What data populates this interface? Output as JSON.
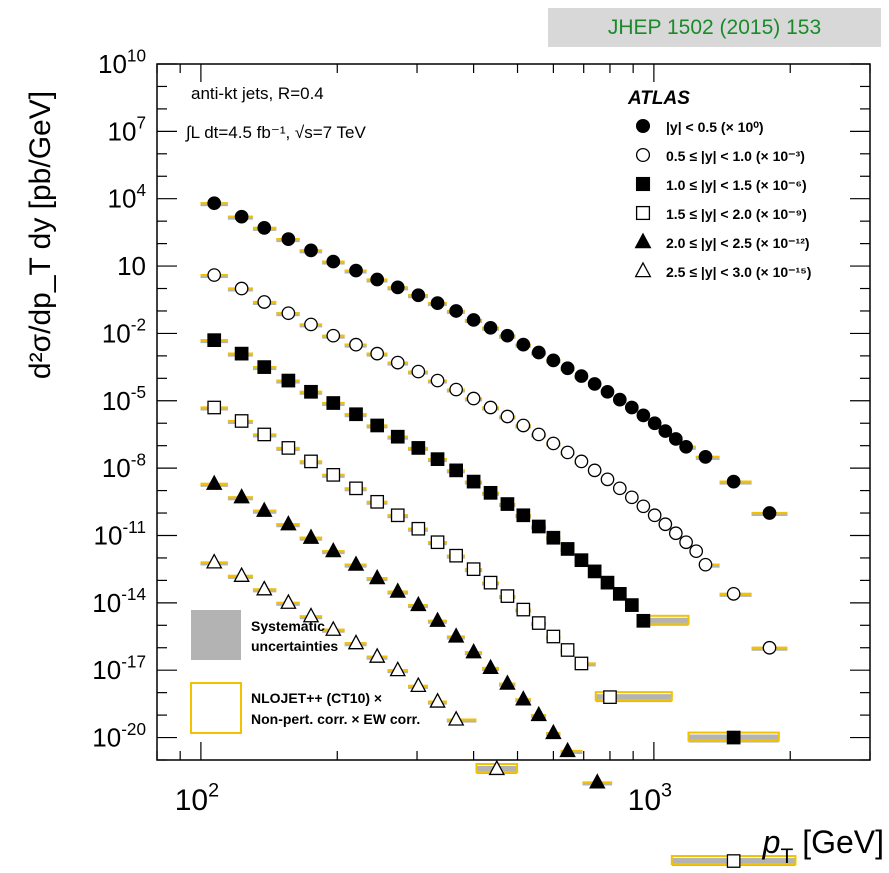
{
  "journal_ref": "JHEP 1502 (2015) 153",
  "colors": {
    "journal_text": "#1a8a2a",
    "journal_bg": "#d8d8d8",
    "nlo": "#f2c200",
    "syst": "#b3b3b3"
  },
  "chart_data": {
    "type": "scatter",
    "title": "",
    "xlabel": {
      "main": "p",
      "sub": "T",
      "unit": " [GeV]"
    },
    "ylabel": {
      "text": "d²σ/dp_T dy [pb/GeV]"
    },
    "x_scale": "log",
    "y_scale": "log",
    "xlim": [
      80,
      3000
    ],
    "ylim_exp": [
      -21,
      10
    ],
    "x_ticks": [
      {
        "base": "10",
        "exp": "2",
        "value": 100
      },
      {
        "base": "10",
        "exp": "3",
        "value": 1000
      }
    ],
    "y_ticks": [
      {
        "base": "10",
        "exp": "10",
        "value_exp": 10
      },
      {
        "base": "10",
        "exp": "7",
        "value_exp": 7
      },
      {
        "base": "10",
        "exp": "4",
        "value_exp": 4
      },
      {
        "base": "10",
        "exp": "",
        "value_exp": 1
      },
      {
        "base": "10",
        "exp": "-2",
        "value_exp": -2
      },
      {
        "base": "10",
        "exp": "-5",
        "value_exp": -5
      },
      {
        "base": "10",
        "exp": "-8",
        "value_exp": -8
      },
      {
        "base": "10",
        "exp": "-11",
        "value_exp": -11
      },
      {
        "base": "10",
        "exp": "-14",
        "value_exp": -14
      },
      {
        "base": "10",
        "exp": "-17",
        "value_exp": -17
      },
      {
        "base": "10",
        "exp": "-20",
        "value_exp": -20
      }
    ],
    "annotations": {
      "jets": "anti-kt jets, R=0.4",
      "lumi": "∫L dt=4.5 fb⁻¹, √s=7 TeV",
      "experiment": "ATLAS"
    },
    "legend": {
      "placement": "top-right",
      "entries": [
        {
          "label": "|y| < 0.5 (× 10⁰)",
          "marker": "circle",
          "filled": true
        },
        {
          "label": "0.5 ≤ |y| < 1.0 (× 10⁻³)",
          "marker": "circle",
          "filled": false
        },
        {
          "label": "1.0 ≤ |y| < 1.5 (× 10⁻⁶)",
          "marker": "square",
          "filled": true
        },
        {
          "label": "1.5 ≤ |y| < 2.0 (× 10⁻⁹)",
          "marker": "square",
          "filled": false
        },
        {
          "label": "2.0 ≤ |y| < 2.5 (× 10⁻¹²)",
          "marker": "triangle",
          "filled": true
        },
        {
          "label": "2.5 ≤ |y| < 3.0 (× 10⁻¹⁵)",
          "marker": "triangle",
          "filled": false
        }
      ]
    },
    "legend_bottom": {
      "placement": "bottom-left",
      "syst": "Systematic uncertainties",
      "nlo": "NLOJET++ (CT10) × Non-pert. corr. × EW corr."
    },
    "series": [
      {
        "name": "|y| < 0.5 (× 10⁰)",
        "marker": "circle",
        "filled": true,
        "points": [
          [
            107,
            3.8
          ],
          [
            123,
            3.2
          ],
          [
            138,
            2.7
          ],
          [
            156,
            2.2
          ],
          [
            175,
            1.7
          ],
          [
            196,
            1.2
          ],
          [
            220,
            0.8
          ],
          [
            245,
            0.4
          ],
          [
            272,
            0.05
          ],
          [
            302,
            -0.3
          ],
          [
            333,
            -0.65
          ],
          [
            366,
            -1.0
          ],
          [
            400,
            -1.4
          ],
          [
            436,
            -1.75
          ],
          [
            475,
            -2.1
          ],
          [
            515,
            -2.5
          ],
          [
            557,
            -2.85
          ],
          [
            600,
            -3.2
          ],
          [
            645,
            -3.55
          ],
          [
            692,
            -3.9
          ],
          [
            740,
            -4.25
          ],
          [
            790,
            -4.6
          ],
          [
            841,
            -4.95
          ],
          [
            894,
            -5.3
          ],
          [
            948,
            -5.65
          ],
          [
            1004,
            -6.0
          ],
          [
            1060,
            -6.35
          ],
          [
            1118,
            -6.7
          ],
          [
            1178,
            -7.05
          ],
          [
            1300,
            -7.5
          ],
          [
            1500,
            -8.6
          ],
          [
            1800,
            -10.0
          ]
        ]
      },
      {
        "name": "0.5 ≤ |y| < 1.0 (× 10⁻³)",
        "marker": "circle",
        "filled": false,
        "points": [
          [
            107,
            0.6
          ],
          [
            123,
            0.0
          ],
          [
            138,
            -0.6
          ],
          [
            156,
            -1.1
          ],
          [
            175,
            -1.6
          ],
          [
            196,
            -2.1
          ],
          [
            220,
            -2.5
          ],
          [
            245,
            -2.9
          ],
          [
            272,
            -3.3
          ],
          [
            302,
            -3.7
          ],
          [
            333,
            -4.1
          ],
          [
            366,
            -4.5
          ],
          [
            400,
            -4.9
          ],
          [
            436,
            -5.3
          ],
          [
            475,
            -5.7
          ],
          [
            515,
            -6.1
          ],
          [
            557,
            -6.5
          ],
          [
            600,
            -6.9
          ],
          [
            645,
            -7.3
          ],
          [
            692,
            -7.7
          ],
          [
            740,
            -8.1
          ],
          [
            790,
            -8.5
          ],
          [
            841,
            -8.9
          ],
          [
            894,
            -9.3
          ],
          [
            948,
            -9.7
          ],
          [
            1004,
            -10.1
          ],
          [
            1060,
            -10.5
          ],
          [
            1118,
            -10.9
          ],
          [
            1178,
            -11.3
          ],
          [
            1240,
            -11.7
          ],
          [
            1300,
            -12.3
          ],
          [
            1500,
            -13.6
          ],
          [
            1800,
            -16.0
          ]
        ]
      },
      {
        "name": "1.0 ≤ |y| < 1.5 (× 10⁻⁶)",
        "marker": "square",
        "filled": true,
        "points": [
          [
            107,
            -2.3
          ],
          [
            123,
            -2.9
          ],
          [
            138,
            -3.5
          ],
          [
            156,
            -4.1
          ],
          [
            175,
            -4.6
          ],
          [
            196,
            -5.1
          ],
          [
            220,
            -5.6
          ],
          [
            245,
            -6.1
          ],
          [
            272,
            -6.6
          ],
          [
            302,
            -7.1
          ],
          [
            333,
            -7.6
          ],
          [
            366,
            -8.1
          ],
          [
            400,
            -8.6
          ],
          [
            436,
            -9.1
          ],
          [
            475,
            -9.6
          ],
          [
            515,
            -10.1
          ],
          [
            557,
            -10.6
          ],
          [
            600,
            -11.1
          ],
          [
            645,
            -11.6
          ],
          [
            692,
            -12.1
          ],
          [
            740,
            -12.6
          ],
          [
            790,
            -13.1
          ],
          [
            841,
            -13.6
          ],
          [
            894,
            -14.1
          ],
          [
            948,
            -14.8
          ],
          [
            1500,
            -20.0
          ]
        ]
      },
      {
        "name": "1.5 ≤ |y| < 2.0 (× 10⁻⁹)",
        "marker": "square",
        "filled": false,
        "points": [
          [
            107,
            -5.3
          ],
          [
            123,
            -5.9
          ],
          [
            138,
            -6.5
          ],
          [
            156,
            -7.1
          ],
          [
            175,
            -7.7
          ],
          [
            196,
            -8.3
          ],
          [
            220,
            -8.9
          ],
          [
            245,
            -9.5
          ],
          [
            272,
            -10.1
          ],
          [
            302,
            -10.7
          ],
          [
            333,
            -11.3
          ],
          [
            366,
            -11.9
          ],
          [
            400,
            -12.5
          ],
          [
            436,
            -13.1
          ],
          [
            475,
            -13.7
          ],
          [
            515,
            -14.3
          ],
          [
            557,
            -14.9
          ],
          [
            600,
            -15.5
          ],
          [
            645,
            -16.1
          ],
          [
            692,
            -16.7
          ],
          [
            800,
            -18.2
          ],
          [
            1500,
            -25.5
          ]
        ]
      },
      {
        "name": "2.0 ≤ |y| < 2.5 (× 10⁻¹²)",
        "marker": "triangle",
        "filled": true,
        "points": [
          [
            107,
            -8.7
          ],
          [
            123,
            -9.3
          ],
          [
            138,
            -9.9
          ],
          [
            156,
            -10.5
          ],
          [
            175,
            -11.1
          ],
          [
            196,
            -11.7
          ],
          [
            220,
            -12.3
          ],
          [
            245,
            -12.9
          ],
          [
            272,
            -13.5
          ],
          [
            302,
            -14.1
          ],
          [
            333,
            -14.8
          ],
          [
            366,
            -15.5
          ],
          [
            400,
            -16.2
          ],
          [
            436,
            -16.9
          ],
          [
            475,
            -17.6
          ],
          [
            515,
            -18.3
          ],
          [
            557,
            -19.0
          ],
          [
            600,
            -19.8
          ],
          [
            645,
            -20.6
          ],
          [
            750,
            -22.0
          ]
        ]
      },
      {
        "name": "2.5 ≤ |y| < 3.0 (× 10⁻¹⁵)",
        "marker": "triangle",
        "filled": false,
        "points": [
          [
            107,
            -12.2
          ],
          [
            123,
            -12.8
          ],
          [
            138,
            -13.4
          ],
          [
            156,
            -14.0
          ],
          [
            175,
            -14.6
          ],
          [
            196,
            -15.2
          ],
          [
            220,
            -15.8
          ],
          [
            245,
            -16.4
          ],
          [
            272,
            -17.0
          ],
          [
            302,
            -17.7
          ],
          [
            333,
            -18.4
          ],
          [
            366,
            -19.2
          ],
          [
            450,
            -21.4
          ]
        ]
      }
    ]
  }
}
